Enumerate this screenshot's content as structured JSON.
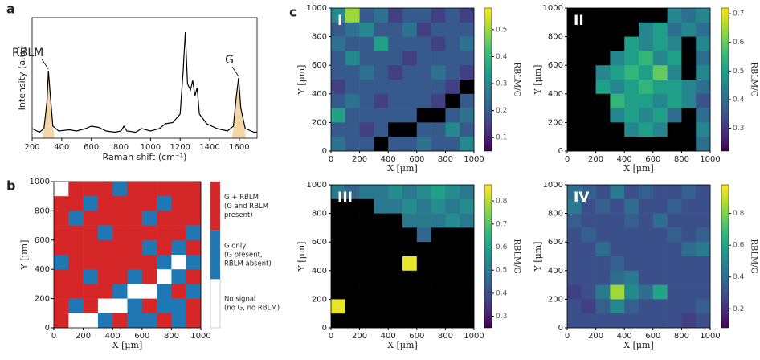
{
  "panel_labels": [
    "a",
    "b",
    "c"
  ],
  "chart_data": [
    {
      "type": "line",
      "xlabel": "Raman shift (cm⁻¹)",
      "ylabel": "Intensity (a.u.)",
      "x": [
        200,
        250,
        280,
        300,
        310,
        320,
        340,
        380,
        450,
        500,
        560,
        600,
        650,
        700,
        760,
        800,
        820,
        840,
        900,
        940,
        1000,
        1060,
        1100,
        1150,
        1200,
        1220,
        1235,
        1250,
        1270,
        1285,
        1300,
        1315,
        1330,
        1380,
        1450,
        1520,
        1560,
        1580,
        1595,
        1610,
        1640,
        1700,
        1720
      ],
      "series": [
        {
          "color": "#000000",
          "values": [
            0.08,
            0.05,
            0.08,
            0.3,
            0.56,
            0.4,
            0.1,
            0.06,
            0.07,
            0.06,
            0.08,
            0.1,
            0.09,
            0.06,
            0.05,
            0.06,
            0.1,
            0.06,
            0.05,
            0.08,
            0.06,
            0.08,
            0.12,
            0.13,
            0.2,
            0.55,
            0.88,
            0.45,
            0.4,
            0.48,
            0.35,
            0.42,
            0.2,
            0.12,
            0.08,
            0.06,
            0.1,
            0.35,
            0.5,
            0.25,
            0.08,
            0.05,
            0.05
          ]
        }
      ],
      "fill_color": "#e8a33d",
      "fill_ranges": [
        [
          270,
          350
        ],
        [
          1550,
          1640
        ]
      ],
      "annotations": [
        {
          "text": "RBLM",
          "x": 310
        },
        {
          "text": "G",
          "x": 1595
        }
      ],
      "xlim": [
        200,
        1720
      ],
      "ylim": [
        0,
        1
      ],
      "xticks": [
        200,
        400,
        600,
        800,
        1000,
        1200,
        1400,
        1600
      ]
    },
    {
      "type": "heatmap",
      "cmap": "categorical",
      "xlabel": "X [μm]",
      "ylabel": "Y [μm]",
      "xlim": [
        0,
        1000
      ],
      "ylim": [
        0,
        1000
      ],
      "xticks": [
        0,
        200,
        400,
        600,
        800,
        1000
      ],
      "yticks": [
        0,
        200,
        400,
        600,
        800,
        1000
      ],
      "legend": [
        {
          "label": [
            "G + RBLM",
            "(G and RBLM",
            "present)"
          ],
          "color": "#d62728"
        },
        {
          "label": [
            "G only",
            "(G present,",
            "RBLM absent)"
          ],
          "color": "#1f77b4"
        },
        {
          "label": [
            "No signal",
            "(no G, no RBLM)"
          ],
          "color": "#ffffff"
        }
      ],
      "z": [
        [
          2,
          0,
          0,
          0,
          1,
          0,
          0,
          0,
          0,
          0
        ],
        [
          0,
          0,
          1,
          0,
          0,
          0,
          0,
          1,
          0,
          0
        ],
        [
          0,
          1,
          0,
          0,
          0,
          0,
          1,
          0,
          0,
          0
        ],
        [
          0,
          0,
          0,
          1,
          0,
          0,
          0,
          0,
          0,
          1
        ],
        [
          0,
          0,
          0,
          0,
          0,
          0,
          1,
          0,
          1,
          0
        ],
        [
          1,
          0,
          0,
          0,
          0,
          0,
          0,
          1,
          2,
          1
        ],
        [
          0,
          0,
          1,
          0,
          0,
          1,
          0,
          2,
          1,
          0
        ],
        [
          0,
          0,
          0,
          0,
          1,
          2,
          2,
          1,
          0,
          1
        ],
        [
          0,
          1,
          0,
          2,
          2,
          1,
          0,
          1,
          1,
          0
        ],
        [
          0,
          2,
          2,
          1,
          0,
          1,
          1,
          0,
          1,
          0
        ]
      ]
    },
    {
      "type": "heatmap",
      "title": "I",
      "cmap": "viridis",
      "null_color": "#000000",
      "xlabel": "X [μm]",
      "ylabel": "Y [μm]",
      "zlabel": "RBLM/G",
      "xlim": [
        0,
        1000
      ],
      "ylim": [
        0,
        1000
      ],
      "xticks": [
        0,
        200,
        400,
        600,
        800,
        1000
      ],
      "yticks": [
        0,
        200,
        400,
        600,
        800,
        1000
      ],
      "zlim": [
        0.05,
        0.58
      ],
      "zticks": [
        0.1,
        0.2,
        0.3,
        0.4,
        0.5
      ],
      "z": [
        [
          0.3,
          0.5,
          0.2,
          0.25,
          0.15,
          0.2,
          0.2,
          0.15,
          0.2,
          0.15
        ],
        [
          0.2,
          0.25,
          0.3,
          0.2,
          0.2,
          0.25,
          0.15,
          0.2,
          0.2,
          0.2
        ],
        [
          0.25,
          0.2,
          0.2,
          0.35,
          0.2,
          0.2,
          0.2,
          0.15,
          0.2,
          0.25
        ],
        [
          0.2,
          0.3,
          0.2,
          0.2,
          0.2,
          0.15,
          0.2,
          0.2,
          0.2,
          0.2
        ],
        [
          0.2,
          0.2,
          0.25,
          0.2,
          0.15,
          0.2,
          0.2,
          0.25,
          0.2,
          0.15
        ],
        [
          0.15,
          0.2,
          0.2,
          0.2,
          0.2,
          0.2,
          0.2,
          0.2,
          0.15,
          null
        ],
        [
          0.2,
          0.25,
          0.2,
          0.15,
          0.2,
          0.2,
          0.2,
          0.15,
          null,
          0.2
        ],
        [
          0.35,
          0.2,
          0.2,
          0.2,
          0.2,
          0.2,
          null,
          null,
          0.2,
          0.25
        ],
        [
          0.2,
          0.2,
          0.15,
          0.2,
          null,
          null,
          0.2,
          0.2,
          0.3,
          0.2
        ],
        [
          0.25,
          0.2,
          0.2,
          null,
          0.2,
          0.2,
          0.25,
          0.2,
          0.2,
          0.3
        ]
      ]
    },
    {
      "type": "heatmap",
      "title": "II",
      "cmap": "viridis",
      "null_color": "#000000",
      "xlabel": "X [μm]",
      "ylabel": "Y [μm]",
      "zlabel": "RBLM/G",
      "xlim": [
        0,
        1000
      ],
      "ylim": [
        0,
        1000
      ],
      "xticks": [
        0,
        200,
        400,
        600,
        800,
        1000
      ],
      "yticks": [
        0,
        200,
        400,
        600,
        800,
        1000
      ],
      "zlim": [
        0.22,
        0.72
      ],
      "zticks": [
        0.3,
        0.4,
        0.5,
        0.6,
        0.7
      ],
      "z": [
        [
          null,
          null,
          null,
          null,
          null,
          null,
          null,
          0.45,
          0.4,
          0.45
        ],
        [
          null,
          null,
          null,
          null,
          null,
          0.45,
          0.5,
          0.4,
          0.45,
          0.4
        ],
        [
          null,
          null,
          null,
          null,
          0.5,
          0.45,
          0.5,
          0.45,
          null,
          0.45
        ],
        [
          null,
          null,
          null,
          0.45,
          0.5,
          0.55,
          0.45,
          0.5,
          null,
          0.4
        ],
        [
          null,
          null,
          0.45,
          0.5,
          0.55,
          0.5,
          0.6,
          0.45,
          null,
          0.45
        ],
        [
          null,
          null,
          0.5,
          0.45,
          0.5,
          0.55,
          0.5,
          0.5,
          0.45,
          0.4
        ],
        [
          null,
          null,
          null,
          0.55,
          0.5,
          0.5,
          0.45,
          0.5,
          0.45,
          0.35
        ],
        [
          null,
          null,
          null,
          0.45,
          0.5,
          0.45,
          0.5,
          0.4,
          null,
          0.4
        ],
        [
          null,
          null,
          null,
          null,
          0.45,
          0.5,
          0.45,
          null,
          null,
          0.45
        ],
        [
          null,
          null,
          null,
          null,
          null,
          null,
          null,
          null,
          null,
          0.4
        ]
      ]
    },
    {
      "type": "heatmap",
      "title": "III",
      "cmap": "viridis",
      "null_color": "#000000",
      "xlabel": "X [μm]",
      "ylabel": "Y [μm]",
      "zlabel": "RBLM/G",
      "xlim": [
        0,
        1000
      ],
      "ylim": [
        0,
        1000
      ],
      "xticks": [
        0,
        200,
        400,
        600,
        800,
        1000
      ],
      "yticks": [
        0,
        200,
        400,
        600,
        800,
        1000
      ],
      "zlim": [
        0.25,
        0.87
      ],
      "zticks": [
        0.3,
        0.4,
        0.5,
        0.6,
        0.7,
        0.8
      ],
      "z": [
        [
          0.5,
          0.45,
          0.5,
          0.5,
          0.55,
          0.5,
          0.55,
          0.6,
          0.55,
          0.5
        ],
        [
          null,
          null,
          null,
          0.5,
          0.5,
          0.55,
          0.5,
          0.55,
          0.5,
          0.55
        ],
        [
          null,
          null,
          null,
          null,
          null,
          0.5,
          0.5,
          0.5,
          0.55,
          0.5
        ],
        [
          null,
          null,
          null,
          null,
          null,
          null,
          0.45,
          null,
          null,
          null
        ],
        [
          null,
          null,
          null,
          null,
          null,
          null,
          null,
          null,
          null,
          null
        ],
        [
          null,
          null,
          null,
          null,
          null,
          0.85,
          null,
          null,
          null,
          null
        ],
        [
          null,
          null,
          null,
          null,
          null,
          null,
          null,
          null,
          null,
          null
        ],
        [
          null,
          null,
          null,
          null,
          null,
          null,
          null,
          null,
          null,
          null
        ],
        [
          0.85,
          null,
          null,
          null,
          null,
          null,
          null,
          null,
          null,
          null
        ],
        [
          null,
          null,
          null,
          null,
          null,
          null,
          null,
          null,
          null,
          null
        ]
      ]
    },
    {
      "type": "heatmap",
      "title": "IV",
      "cmap": "viridis",
      "null_color": "#000000",
      "xlabel": "X [μm]",
      "ylabel": "Y [μm]",
      "zlabel": "RBLM/G",
      "xlim": [
        0,
        1000
      ],
      "ylim": [
        0,
        1000
      ],
      "xticks": [
        0,
        200,
        400,
        600,
        800,
        1000
      ],
      "yticks": [
        0,
        200,
        400,
        600,
        800,
        1000
      ],
      "zlim": [
        0.08,
        0.98
      ],
      "zticks": [
        0.2,
        0.4,
        0.6,
        0.8
      ],
      "z": [
        [
          0.4,
          0.35,
          0.3,
          0.45,
          0.3,
          0.35,
          0.3,
          0.3,
          0.35,
          0.3
        ],
        [
          0.45,
          0.3,
          0.35,
          0.3,
          0.4,
          0.3,
          0.3,
          0.35,
          0.3,
          0.3
        ],
        [
          0.35,
          0.3,
          0.3,
          0.3,
          0.35,
          0.3,
          0.4,
          0.3,
          0.3,
          0.3
        ],
        [
          0.3,
          0.35,
          0.3,
          0.3,
          0.3,
          0.3,
          0.3,
          0.35,
          0.3,
          0.35
        ],
        [
          0.3,
          0.3,
          0.4,
          0.3,
          0.3,
          0.3,
          0.3,
          0.3,
          0.4,
          0.45
        ],
        [
          0.3,
          0.3,
          0.3,
          0.35,
          0.3,
          0.3,
          0.3,
          0.3,
          0.3,
          0.3
        ],
        [
          0.3,
          0.3,
          0.3,
          0.4,
          0.45,
          0.3,
          0.3,
          0.3,
          0.3,
          0.3
        ],
        [
          0.25,
          0.3,
          0.45,
          0.85,
          0.5,
          0.4,
          0.6,
          0.3,
          0.3,
          0.3
        ],
        [
          0.3,
          0.25,
          0.35,
          0.5,
          0.35,
          0.3,
          0.3,
          0.3,
          0.3,
          0.35
        ],
        [
          0.3,
          0.3,
          0.3,
          0.3,
          0.3,
          0.3,
          0.3,
          0.3,
          0.25,
          0.3
        ]
      ]
    }
  ]
}
